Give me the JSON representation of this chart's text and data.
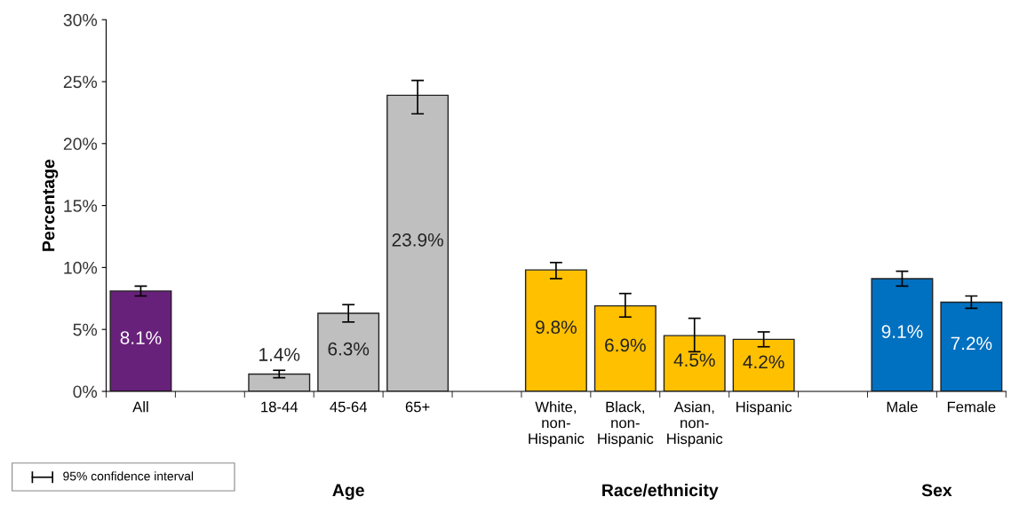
{
  "chart_data": {
    "type": "bar",
    "ylabel": "Percentage",
    "categories": [
      "All",
      null,
      "18-44",
      "45-64",
      "65+",
      null,
      "White,\nnon-\nHispanic",
      "Black,\nnon-\nHispanic",
      "Asian,\nnon-\nHispanic",
      "Hispanic",
      null,
      "Male",
      "Female"
    ],
    "values": [
      8.1,
      null,
      1.4,
      6.3,
      23.9,
      null,
      9.8,
      6.9,
      4.5,
      4.2,
      null,
      9.1,
      7.2
    ],
    "colors": [
      "#68217a",
      null,
      "#bfbfbf",
      "#bfbfbf",
      "#bfbfbf",
      null,
      "#ffc000",
      "#ffc000",
      "#ffc000",
      "#ffc000",
      null,
      "#0070c0",
      "#0070c0"
    ],
    "errors": [
      [
        7.7,
        8.5
      ],
      null,
      [
        1.1,
        1.7
      ],
      [
        5.6,
        7.0
      ],
      [
        22.4,
        25.1
      ],
      null,
      [
        9.1,
        10.4
      ],
      [
        6.0,
        7.9
      ],
      [
        3.2,
        5.9
      ],
      [
        3.6,
        4.8
      ],
      null,
      [
        8.5,
        9.7
      ],
      [
        6.7,
        7.7
      ]
    ],
    "value_labels": [
      "8.1%",
      null,
      "1.4%",
      "6.3%",
      "23.9%",
      null,
      "9.8%",
      "6.9%",
      "4.5%",
      "4.2%",
      null,
      "9.1%",
      "7.2%"
    ],
    "ylim": [
      0,
      30
    ],
    "yticks": [
      {
        "value": 0,
        "label": "0%"
      },
      {
        "value": 5,
        "label": "5%"
      },
      {
        "value": 10,
        "label": "10%"
      },
      {
        "value": 15,
        "label": "15%"
      },
      {
        "value": 20,
        "label": "20%"
      },
      {
        "value": 25,
        "label": "25%"
      },
      {
        "value": 30,
        "label": "30%"
      }
    ],
    "grid": false,
    "annotations": [
      "95% confidence interval",
      "Age",
      "Race/ethnicity",
      "Sex"
    ]
  }
}
